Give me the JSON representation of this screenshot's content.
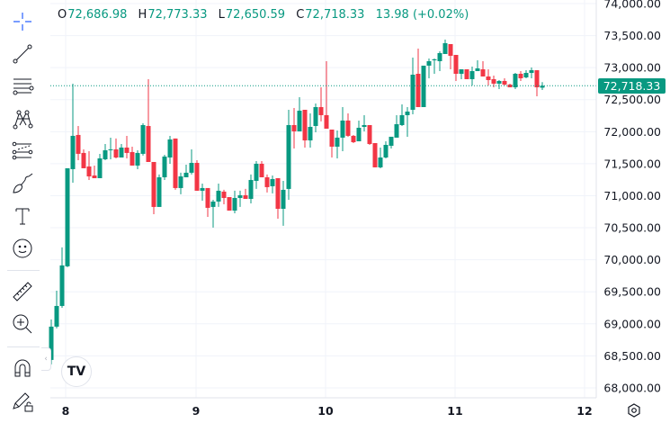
{
  "legend": {
    "o_label": "O",
    "o_value": "72,686.98",
    "h_label": "H",
    "h_value": "72,773.33",
    "l_label": "L",
    "l_value": "72,650.59",
    "c_label": "C",
    "c_value": "72,718.33",
    "change": "13.98 (+0.02%)"
  },
  "last_price_label": "72,718.33",
  "logo_text": "TV",
  "toolbar": {
    "items": [
      "crosshair-icon",
      "trend-line-icon",
      "horizontal-lines-icon",
      "pattern-icon",
      "fib-icon",
      "brush-icon",
      "text-icon",
      "emoji-icon",
      "ruler-icon",
      "zoom-in-icon",
      "magnet-icon",
      "lock-drawings-icon"
    ]
  },
  "colors": {
    "up": "#089981",
    "down": "#f23645",
    "grid": "#f0f3fa",
    "accent": "#2962ff"
  },
  "chart_data": {
    "type": "candlestick",
    "y_ticks": [
      "74,000.00",
      "73,500.00",
      "73,000.00",
      "72,500.00",
      "72,000.00",
      "71,500.00",
      "71,000.00",
      "70,500.00",
      "70,000.00",
      "69,500.00",
      "69,000.00",
      "68,500.00",
      "68,000.00"
    ],
    "y_tick_values": [
      74000,
      73500,
      73000,
      72500,
      72000,
      71500,
      71000,
      70500,
      70000,
      69500,
      69000,
      68500,
      68000
    ],
    "ylim": [
      67900,
      74050
    ],
    "x_ticks": [
      "8",
      "9",
      "10",
      "11",
      "12"
    ],
    "last_price": 72718.33,
    "grid": true,
    "ohlc": [
      [
        68436,
        69068,
        68366,
        68956
      ],
      [
        68956,
        69518,
        68928,
        69279
      ],
      [
        69279,
        70193,
        69251,
        69912
      ],
      [
        69898,
        71429,
        69884,
        71429
      ],
      [
        71415,
        72750,
        71204,
        71935
      ],
      [
        71949,
        72089,
        71555,
        71654
      ],
      [
        71668,
        71724,
        71429,
        71429
      ],
      [
        71457,
        71696,
        71246,
        71302
      ],
      [
        71316,
        71471,
        71274,
        71274
      ],
      [
        71274,
        71654,
        71274,
        71583
      ],
      [
        71569,
        71808,
        71555,
        71710
      ],
      [
        71710,
        71907,
        71569,
        71724
      ],
      [
        71724,
        71893,
        71583,
        71597
      ],
      [
        71597,
        71808,
        71597,
        71752
      ],
      [
        71752,
        71935,
        71583,
        71668
      ],
      [
        71682,
        71766,
        71471,
        71471
      ],
      [
        71471,
        71710,
        71415,
        71668
      ],
      [
        71654,
        72131,
        71626,
        72103
      ],
      [
        72089,
        72820,
        71527,
        71527
      ],
      [
        71527,
        71527,
        70712,
        70825
      ],
      [
        70825,
        71331,
        70825,
        71288
      ],
      [
        71288,
        71640,
        71246,
        71612
      ],
      [
        71597,
        71935,
        71499,
        71879
      ],
      [
        71893,
        71893,
        71092,
        71120
      ],
      [
        71120,
        71359,
        71022,
        71302
      ],
      [
        71288,
        71485,
        71288,
        71359
      ],
      [
        71359,
        71724,
        71331,
        71513
      ],
      [
        71513,
        71555,
        71078,
        71078
      ],
      [
        71078,
        71190,
        70923,
        71120
      ],
      [
        71120,
        71120,
        70670,
        70811
      ],
      [
        70825,
        70937,
        70502,
        70909
      ],
      [
        70909,
        71190,
        70825,
        71078
      ],
      [
        71064,
        71092,
        70867,
        70965
      ],
      [
        70979,
        70979,
        70768,
        70768
      ],
      [
        70768,
        71078,
        70726,
        70965
      ],
      [
        70965,
        71078,
        70825,
        71008
      ],
      [
        71008,
        71106,
        70951,
        70951
      ],
      [
        70951,
        71331,
        70881,
        71246
      ],
      [
        71232,
        71541,
        71106,
        71499
      ],
      [
        71499,
        71541,
        71288,
        71288
      ],
      [
        71288,
        71331,
        71050,
        71134
      ],
      [
        71148,
        71316,
        71036,
        71260
      ],
      [
        71274,
        71274,
        70642,
        70796
      ],
      [
        70796,
        71232,
        70530,
        71092
      ],
      [
        71106,
        72342,
        70937,
        72103
      ],
      [
        72103,
        72370,
        71738,
        72005
      ],
      [
        72005,
        72539,
        72005,
        72328
      ],
      [
        72342,
        72342,
        71752,
        71864
      ],
      [
        71864,
        72286,
        71752,
        72075
      ],
      [
        72089,
        72440,
        71991,
        72384
      ],
      [
        72384,
        72693,
        72160,
        72258
      ],
      [
        72258,
        73101,
        72047,
        72047
      ],
      [
        72033,
        72033,
        71597,
        71766
      ],
      [
        71766,
        72019,
        71583,
        71907
      ],
      [
        71907,
        72384,
        71696,
        72174
      ],
      [
        72174,
        72286,
        71921,
        71935
      ],
      [
        71935,
        71949,
        71822,
        71836
      ],
      [
        71850,
        72174,
        71850,
        72061
      ],
      [
        72075,
        72258,
        72005,
        72103
      ],
      [
        72103,
        72103,
        71794,
        71808
      ],
      [
        71822,
        71822,
        71443,
        71443
      ],
      [
        71443,
        71752,
        71429,
        71597
      ],
      [
        71597,
        71850,
        71583,
        71794
      ],
      [
        71780,
        71921,
        71738,
        71921
      ],
      [
        71907,
        72258,
        71907,
        72117
      ],
      [
        72103,
        72426,
        72089,
        72258
      ],
      [
        72258,
        72384,
        71921,
        72314
      ],
      [
        72342,
        73157,
        72272,
        72890
      ],
      [
        72904,
        73297,
        72384,
        72384
      ],
      [
        72384,
        73031,
        72384,
        73031
      ],
      [
        73031,
        73143,
        72834,
        73101
      ],
      [
        73115,
        73143,
        72904,
        73129
      ],
      [
        73101,
        73255,
        72946,
        73227
      ],
      [
        73213,
        73438,
        73213,
        73382
      ],
      [
        73368,
        73368,
        72974,
        73185
      ],
      [
        73199,
        73199,
        72792,
        72904
      ],
      [
        72904,
        72974,
        72820,
        72974
      ],
      [
        72974,
        72974,
        72820,
        72820
      ],
      [
        72820,
        73017,
        72721,
        72946
      ],
      [
        72946,
        73115,
        72946,
        72988
      ],
      [
        72974,
        73101,
        72862,
        72862
      ],
      [
        72862,
        72974,
        72721,
        72806
      ],
      [
        72820,
        72876,
        72693,
        72750
      ],
      [
        72750,
        72806,
        72665,
        72792
      ],
      [
        72792,
        72834,
        72721,
        72736
      ],
      [
        72736,
        72750,
        72693,
        72693
      ],
      [
        72693,
        72918,
        72665,
        72904
      ],
      [
        72904,
        72946,
        72792,
        72834
      ],
      [
        72848,
        72960,
        72834,
        72918
      ],
      [
        72918,
        73003,
        72834,
        72960
      ],
      [
        72960,
        72960,
        72553,
        72693
      ],
      [
        72686.98,
        72773.33,
        72650.59,
        72718.33
      ]
    ]
  }
}
